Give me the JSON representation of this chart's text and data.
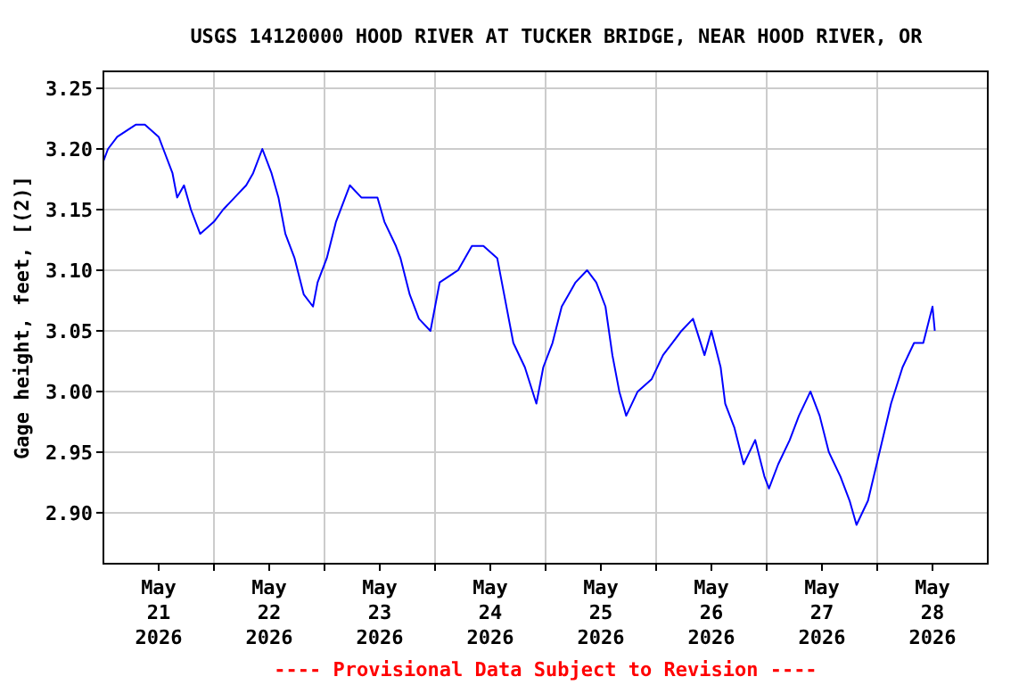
{
  "chart_data": {
    "type": "line",
    "title": "USGS 14120000 HOOD RIVER AT TUCKER BRIDGE, NEAR HOOD RIVER, OR",
    "ylabel": "Gage height, feet, [(2)]",
    "annotations": [
      "---- Provisional Data Subject to Revision ----"
    ],
    "x": [
      "2026-05-21T00:00",
      "2026-05-21T01:00",
      "2026-05-21T03:00",
      "2026-05-21T07:00",
      "2026-05-21T09:00",
      "2026-05-21T12:00",
      "2026-05-21T13:00",
      "2026-05-21T15:00",
      "2026-05-21T16:00",
      "2026-05-21T17:30",
      "2026-05-21T19:00",
      "2026-05-21T21:00",
      "2026-05-22T00:00",
      "2026-05-22T02:00",
      "2026-05-22T04:30",
      "2026-05-22T07:00",
      "2026-05-22T08:30",
      "2026-05-22T10:30",
      "2026-05-22T12:30",
      "2026-05-22T14:00",
      "2026-05-22T15:30",
      "2026-05-22T17:30",
      "2026-05-22T19:30",
      "2026-05-22T21:30",
      "2026-05-22T22:30",
      "2026-05-23T00:30",
      "2026-05-23T02:30",
      "2026-05-23T04:30",
      "2026-05-23T05:30",
      "2026-05-23T08:00",
      "2026-05-23T11:30",
      "2026-05-23T13:00",
      "2026-05-23T15:30",
      "2026-05-23T16:30",
      "2026-05-23T18:30",
      "2026-05-23T20:30",
      "2026-05-23T23:00",
      "2026-05-24T01:00",
      "2026-05-24T05:00",
      "2026-05-24T08:00",
      "2026-05-24T10:30",
      "2026-05-24T13:30",
      "2026-05-24T15:00",
      "2026-05-24T17:00",
      "2026-05-24T19:30",
      "2026-05-24T22:00",
      "2026-05-24T23:30",
      "2026-05-25T01:30",
      "2026-05-25T03:30",
      "2026-05-25T05:00",
      "2026-05-25T06:30",
      "2026-05-25T09:00",
      "2026-05-25T11:00",
      "2026-05-25T13:00",
      "2026-05-25T14:30",
      "2026-05-25T16:00",
      "2026-05-25T17:30",
      "2026-05-25T20:00",
      "2026-05-25T23:00",
      "2026-05-26T01:30",
      "2026-05-26T03:30",
      "2026-05-26T05:30",
      "2026-05-26T08:00",
      "2026-05-26T10:30",
      "2026-05-26T12:00",
      "2026-05-26T14:00",
      "2026-05-26T15:00",
      "2026-05-26T17:00",
      "2026-05-26T19:00",
      "2026-05-26T21:30",
      "2026-05-26T23:30",
      "2026-05-27T00:30",
      "2026-05-27T02:30",
      "2026-05-27T05:00",
      "2026-05-27T07:00",
      "2026-05-27T09:30",
      "2026-05-27T11:30",
      "2026-05-27T13:30",
      "2026-05-27T16:00",
      "2026-05-27T18:00",
      "2026-05-27T19:30",
      "2026-05-27T22:00",
      "2026-05-28T00:30",
      "2026-05-28T03:00",
      "2026-05-28T05:30",
      "2026-05-28T08:00",
      "2026-05-28T10:00",
      "2026-05-28T12:00",
      "2026-05-28T12:30"
    ],
    "series": [
      {
        "color": "#0000ff",
        "values": [
          3.19,
          3.2,
          3.21,
          3.22,
          3.22,
          3.21,
          3.2,
          3.18,
          3.16,
          3.17,
          3.15,
          3.13,
          3.14,
          3.15,
          3.16,
          3.17,
          3.18,
          3.2,
          3.18,
          3.16,
          3.13,
          3.11,
          3.08,
          3.07,
          3.09,
          3.11,
          3.14,
          3.16,
          3.17,
          3.16,
          3.16,
          3.14,
          3.12,
          3.11,
          3.08,
          3.06,
          3.05,
          3.09,
          3.1,
          3.12,
          3.12,
          3.11,
          3.08,
          3.04,
          3.02,
          2.99,
          3.02,
          3.04,
          3.07,
          3.08,
          3.09,
          3.1,
          3.09,
          3.07,
          3.03,
          3.0,
          2.98,
          3.0,
          3.01,
          3.03,
          3.04,
          3.05,
          3.06,
          3.03,
          3.05,
          3.02,
          2.99,
          2.97,
          2.94,
          2.96,
          2.93,
          2.92,
          2.94,
          2.96,
          2.98,
          3.0,
          2.98,
          2.95,
          2.93,
          2.91,
          2.89,
          2.91,
          2.95,
          2.99,
          3.02,
          3.04,
          3.04,
          3.07,
          3.05
        ]
      }
    ],
    "xlim": [
      "2026-05-21T00:00",
      "2026-05-29T00:00"
    ],
    "xticks": [
      {
        "value": "2026-05-21T12:00",
        "label": "May\n21\n2026"
      },
      {
        "value": "2026-05-22T00:00",
        "label": null
      },
      {
        "value": "2026-05-22T12:00",
        "label": "May\n22\n2026"
      },
      {
        "value": "2026-05-23T00:00",
        "label": null
      },
      {
        "value": "2026-05-23T12:00",
        "label": "May\n23\n2026"
      },
      {
        "value": "2026-05-24T00:00",
        "label": null
      },
      {
        "value": "2026-05-24T12:00",
        "label": "May\n24\n2026"
      },
      {
        "value": "2026-05-25T00:00",
        "label": null
      },
      {
        "value": "2026-05-25T12:00",
        "label": "May\n25\n2026"
      },
      {
        "value": "2026-05-26T00:00",
        "label": null
      },
      {
        "value": "2026-05-26T12:00",
        "label": "May\n26\n2026"
      },
      {
        "value": "2026-05-27T00:00",
        "label": null
      },
      {
        "value": "2026-05-27T12:00",
        "label": "May\n27\n2026"
      },
      {
        "value": "2026-05-28T00:00",
        "label": null
      },
      {
        "value": "2026-05-28T12:00",
        "label": "May\n28\n2026"
      }
    ],
    "ylim": [
      2.858,
      3.264
    ],
    "yticks": [
      {
        "value": 2.9,
        "label": "2.90"
      },
      {
        "value": 2.95,
        "label": "2.95"
      },
      {
        "value": 3.0,
        "label": "3.00"
      },
      {
        "value": 3.05,
        "label": "3.05"
      },
      {
        "value": 3.1,
        "label": "3.10"
      },
      {
        "value": 3.15,
        "label": "3.15"
      },
      {
        "value": 3.2,
        "label": "3.20"
      },
      {
        "value": 3.25,
        "label": "3.25"
      }
    ],
    "grid": true,
    "line_style": "solid",
    "marker": "none"
  }
}
